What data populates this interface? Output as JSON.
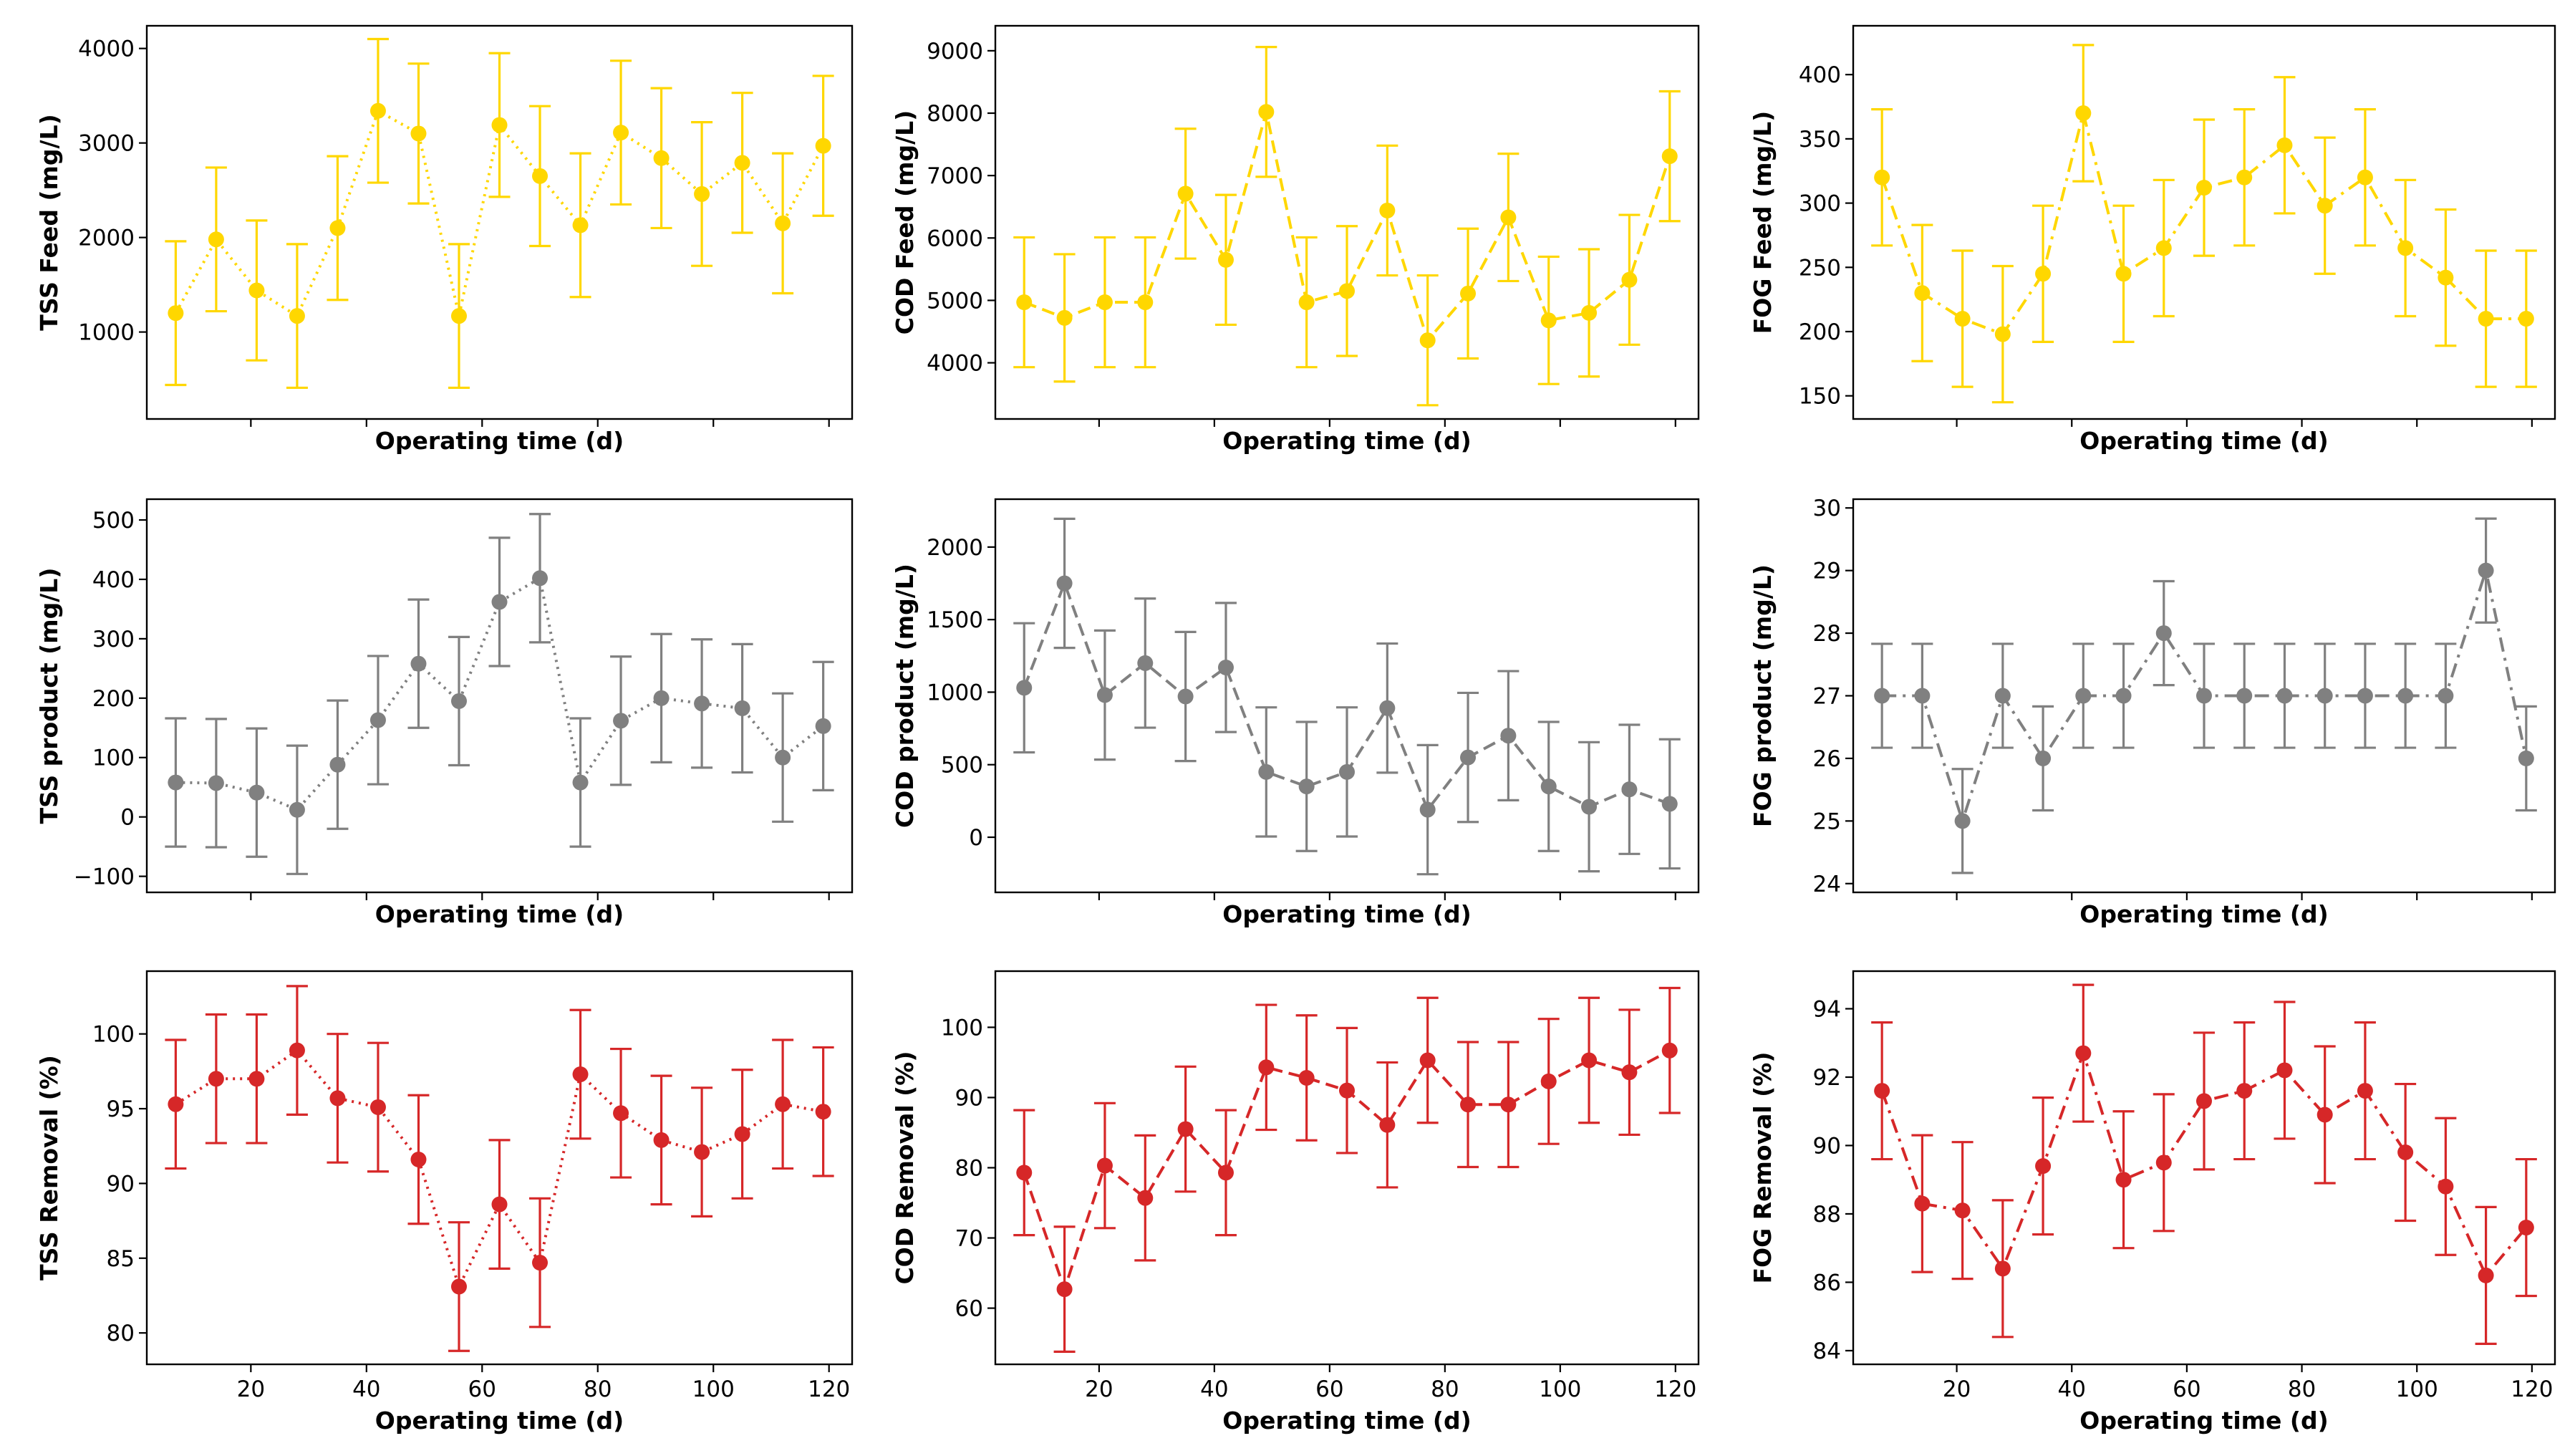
{
  "figure": {
    "x_values": [
      7,
      14,
      21,
      28,
      35,
      42,
      49,
      56,
      63,
      70,
      77,
      84,
      91,
      98,
      105,
      112,
      119
    ],
    "x_range": [
      2,
      124
    ],
    "x_ticks": [
      20,
      40,
      60,
      80,
      100,
      120
    ],
    "x_label": "Operating time (d)"
  },
  "chart_data": [
    {
      "type": "line",
      "row": 0,
      "col": 0,
      "ylabel": "TSS Feed (mg/L)",
      "xlabel": "Operating time (d)",
      "color": "#FFD700",
      "linestyle": "dotted",
      "ylim": [
        80,
        4240
      ],
      "yticks": [
        1000,
        2000,
        3000,
        4000
      ],
      "values": [
        1200,
        1980,
        1440,
        1170,
        2100,
        3340,
        3100,
        1170,
        3190,
        2650,
        2130,
        3110,
        2840,
        2460,
        2790,
        2150,
        2970
      ],
      "errors": [
        760,
        760,
        740,
        760,
        760,
        760,
        740,
        760,
        760,
        740,
        760,
        760,
        740,
        760,
        740,
        740,
        740
      ]
    },
    {
      "type": "line",
      "row": 0,
      "col": 1,
      "ylabel": "COD Feed (mg/L)",
      "xlabel": "Operating time (d)",
      "color": "#FFD700",
      "linestyle": "dashed",
      "ylim": [
        3100,
        9400
      ],
      "yticks": [
        4000,
        5000,
        6000,
        7000,
        8000,
        9000
      ],
      "values": [
        4970,
        4720,
        4970,
        4970,
        6710,
        5650,
        8020,
        4970,
        5150,
        6440,
        4360,
        5110,
        6330,
        4680,
        4800,
        5330,
        7310
      ],
      "errors": [
        1040,
        1020,
        1040,
        1040,
        1040,
        1040,
        1040,
        1040,
        1040,
        1040,
        1040,
        1040,
        1020,
        1020,
        1020,
        1040,
        1040
      ]
    },
    {
      "type": "line",
      "row": 0,
      "col": 2,
      "ylabel": "FOG Feed (mg/L)",
      "xlabel": "Operating time (d)",
      "color": "#FFD700",
      "linestyle": "dashdot",
      "ylim": [
        132,
        438
      ],
      "yticks": [
        150,
        200,
        250,
        300,
        350,
        400
      ],
      "values": [
        320,
        230,
        210,
        198,
        245,
        370,
        245,
        265,
        312,
        320,
        345,
        298,
        320,
        265,
        242,
        210,
        210
      ],
      "errors": [
        53,
        53,
        53,
        53,
        53,
        53,
        53,
        53,
        53,
        53,
        53,
        53,
        53,
        53,
        53,
        53,
        53
      ]
    },
    {
      "type": "line",
      "row": 1,
      "col": 0,
      "ylabel": "TSS product (mg/L)",
      "xlabel": "Operating time (d)",
      "color": "#808080",
      "linestyle": "dotted",
      "ylim": [
        -127,
        535
      ],
      "yticks": [
        -100,
        0,
        100,
        200,
        300,
        400,
        500
      ],
      "values": [
        58,
        57,
        41,
        12,
        88,
        163,
        258,
        195,
        362,
        402,
        58,
        162,
        200,
        191,
        183,
        100,
        153
      ],
      "errors": [
        108,
        108,
        108,
        108,
        108,
        108,
        108,
        108,
        108,
        108,
        108,
        108,
        108,
        108,
        108,
        108,
        108
      ]
    },
    {
      "type": "line",
      "row": 1,
      "col": 1,
      "ylabel": "COD product (mg/L)",
      "xlabel": "Operating time (d)",
      "color": "#808080",
      "linestyle": "dashed",
      "ylim": [
        -380,
        2330
      ],
      "yticks": [
        0,
        500,
        1000,
        1500,
        2000
      ],
      "values": [
        1030,
        1750,
        980,
        1200,
        970,
        1170,
        450,
        350,
        450,
        890,
        190,
        550,
        700,
        350,
        210,
        330,
        230
      ],
      "errors": [
        445,
        445,
        445,
        445,
        445,
        445,
        445,
        445,
        445,
        445,
        445,
        445,
        445,
        445,
        445,
        445,
        445
      ]
    },
    {
      "type": "line",
      "row": 1,
      "col": 2,
      "ylabel": "FOG product (mg/L)",
      "xlabel": "Operating time (d)",
      "color": "#808080",
      "linestyle": "dashdot",
      "ylim": [
        23.86,
        30.14
      ],
      "yticks": [
        24,
        25,
        26,
        27,
        28,
        29,
        30
      ],
      "values": [
        27,
        27,
        25,
        27,
        26,
        27,
        27,
        28,
        27,
        27,
        27,
        27,
        27,
        27,
        27,
        29,
        26
      ],
      "errors": [
        0.83,
        0.83,
        0.83,
        0.83,
        0.83,
        0.83,
        0.83,
        0.83,
        0.83,
        0.83,
        0.83,
        0.83,
        0.83,
        0.83,
        0.83,
        0.83,
        0.83
      ]
    },
    {
      "type": "line",
      "row": 2,
      "col": 0,
      "ylabel": "TSS Removal (%)",
      "xlabel": "Operating time (d)",
      "color": "#D62728",
      "linestyle": "dotted",
      "ylim": [
        77.9,
        104.2
      ],
      "yticks": [
        80,
        85,
        90,
        95,
        100
      ],
      "values": [
        95.3,
        97.0,
        97.0,
        98.9,
        95.7,
        95.1,
        91.6,
        83.1,
        88.6,
        84.7,
        97.3,
        94.7,
        92.9,
        92.1,
        93.3,
        95.3,
        94.8
      ],
      "errors": [
        4.3,
        4.3,
        4.3,
        4.3,
        4.3,
        4.3,
        4.3,
        4.3,
        4.3,
        4.3,
        4.3,
        4.3,
        4.3,
        4.3,
        4.3,
        4.3,
        4.3
      ]
    },
    {
      "type": "line",
      "row": 2,
      "col": 1,
      "ylabel": "COD Removal (%)",
      "xlabel": "Operating time (d)",
      "color": "#D62728",
      "linestyle": "dashed",
      "ylim": [
        52,
        108
      ],
      "yticks": [
        60,
        70,
        80,
        90,
        100
      ],
      "values": [
        79.3,
        62.7,
        80.3,
        75.7,
        85.5,
        79.3,
        94.3,
        92.8,
        91.0,
        86.1,
        95.3,
        89.0,
        89.0,
        92.3,
        95.3,
        93.6,
        96.7
      ],
      "errors": [
        8.9,
        8.9,
        8.9,
        8.9,
        8.9,
        8.9,
        8.9,
        8.9,
        8.9,
        8.9,
        8.9,
        8.9,
        8.9,
        8.9,
        8.9,
        8.9,
        8.9
      ]
    },
    {
      "type": "line",
      "row": 2,
      "col": 2,
      "ylabel": "FOG Removal (%)",
      "xlabel": "Operating time (d)",
      "color": "#D62728",
      "linestyle": "dashdot",
      "ylim": [
        83.6,
        95.1
      ],
      "yticks": [
        84,
        86,
        88,
        90,
        92,
        94
      ],
      "values": [
        91.6,
        88.3,
        88.1,
        86.4,
        89.4,
        92.7,
        89.0,
        89.5,
        91.3,
        91.6,
        92.2,
        90.9,
        91.6,
        89.8,
        88.8,
        86.2,
        87.6
      ],
      "errors": [
        2.0,
        2.0,
        2.0,
        2.0,
        2.0,
        2.0,
        2.0,
        2.0,
        2.0,
        2.0,
        2.0,
        2.0,
        2.0,
        2.0,
        2.0,
        2.0,
        2.0
      ]
    }
  ]
}
